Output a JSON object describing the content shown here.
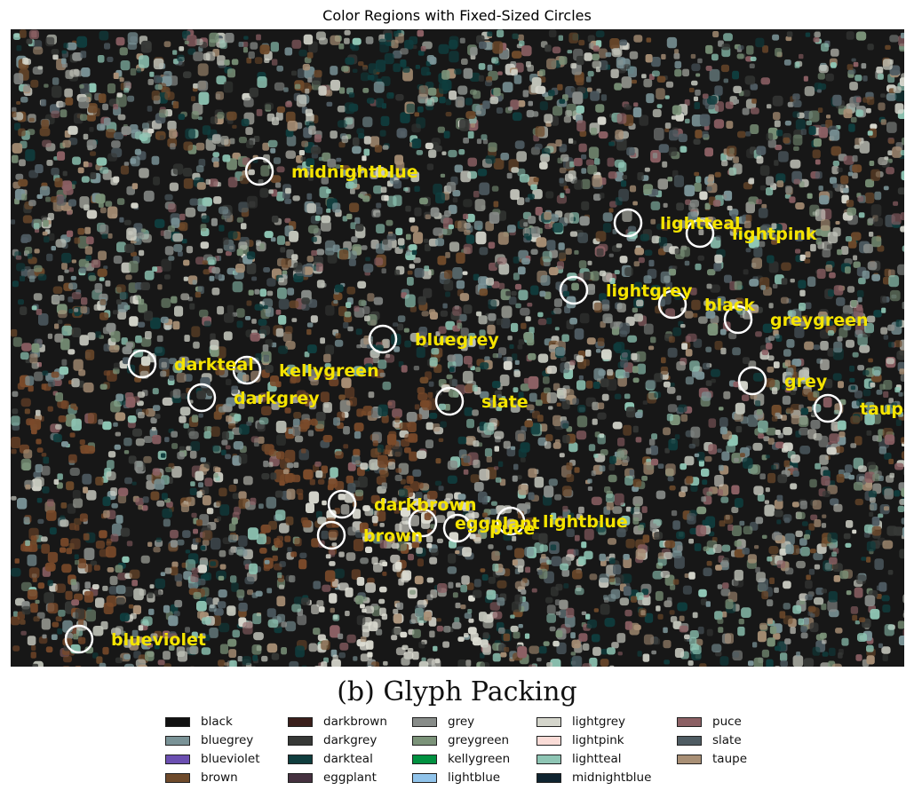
{
  "chart_data": {
    "type": "scatter",
    "title": "Color Regions with Fixed-Sized Circles",
    "caption": "(b) Glyph Packing",
    "xlim": [
      0,
      1006
    ],
    "ylim": [
      0,
      718
    ],
    "background_color": "#171717",
    "marker_color": "#ffffff",
    "label_color": "#f5e400",
    "annotations": [
      {
        "label": "midnightblue",
        "x": 280,
        "y": 160
      },
      {
        "label": "lightteal",
        "x": 695,
        "y": 218
      },
      {
        "label": "lightpink",
        "x": 776,
        "y": 230
      },
      {
        "label": "lightgrey",
        "x": 634,
        "y": 294
      },
      {
        "label": "black",
        "x": 745,
        "y": 310
      },
      {
        "label": "greygreen",
        "x": 819,
        "y": 327
      },
      {
        "label": "bluegrey",
        "x": 419,
        "y": 349
      },
      {
        "label": "darkteal",
        "x": 148,
        "y": 377
      },
      {
        "label": "kellygreen",
        "x": 266,
        "y": 384
      },
      {
        "label": "darkgrey",
        "x": 215,
        "y": 415
      },
      {
        "label": "slate",
        "x": 494,
        "y": 419
      },
      {
        "label": "grey",
        "x": 835,
        "y": 396
      },
      {
        "label": "taupe",
        "x": 920,
        "y": 427
      },
      {
        "label": "darkbrown",
        "x": 373,
        "y": 535
      },
      {
        "label": "brown",
        "x": 361,
        "y": 570
      },
      {
        "label": "eggplant",
        "x": 464,
        "y": 556
      },
      {
        "label": "puce",
        "x": 503,
        "y": 562
      },
      {
        "label": "lightblue",
        "x": 563,
        "y": 554
      },
      {
        "label": "blueviolet",
        "x": 77,
        "y": 687
      }
    ],
    "legend": [
      {
        "label": "black",
        "color": "#111111"
      },
      {
        "label": "bluegrey",
        "color": "#7a9397"
      },
      {
        "label": "blueviolet",
        "color": "#6b4fb1"
      },
      {
        "label": "brown",
        "color": "#6e4a2b"
      },
      {
        "label": "darkbrown",
        "color": "#3a1f1b"
      },
      {
        "label": "darkgrey",
        "color": "#363836"
      },
      {
        "label": "darkteal",
        "color": "#0f3d3e"
      },
      {
        "label": "eggplant",
        "color": "#45313f"
      },
      {
        "label": "grey",
        "color": "#888c89"
      },
      {
        "label": "greygreen",
        "color": "#7b9379"
      },
      {
        "label": "kellygreen",
        "color": "#019140"
      },
      {
        "label": "lightblue",
        "color": "#90c3ea"
      },
      {
        "label": "lightgrey",
        "color": "#d4d5cb"
      },
      {
        "label": "lightpink",
        "color": "#fadcd7"
      },
      {
        "label": "lightteal",
        "color": "#8ec5b4"
      },
      {
        "label": "midnightblue",
        "color": "#0f2430"
      },
      {
        "label": "puce",
        "color": "#8c6064"
      },
      {
        "label": "slate",
        "color": "#4f5c63"
      },
      {
        "label": "taupe",
        "color": "#a88f75"
      }
    ]
  }
}
